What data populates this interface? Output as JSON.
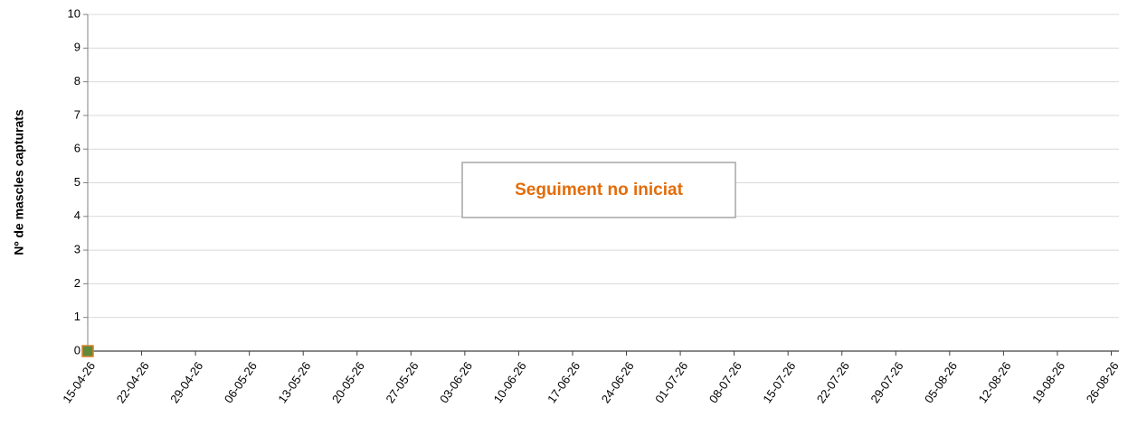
{
  "chart_data": {
    "type": "scatter",
    "y_label": "Nº de mascles capturats",
    "annotation": "Seguiment no iniciat",
    "x": [
      "15-04-26"
    ],
    "series": [
      {
        "color": "#5e8a3a",
        "edge_color": "#d9822b",
        "values": [
          0
        ]
      }
    ],
    "xlim": [
      "15-04-26",
      "27-08-26"
    ],
    "xticks": [
      "15-04-26",
      "22-04-26",
      "29-04-26",
      "06-05-26",
      "13-05-26",
      "20-05-26",
      "27-05-26",
      "03-06-26",
      "10-06-26",
      "17-06-26",
      "24-06-26",
      "01-07-26",
      "08-07-26",
      "15-07-26",
      "22-07-26",
      "29-07-26",
      "05-08-26",
      "12-08-26",
      "19-08-26",
      "26-08-26"
    ],
    "ylim": [
      0,
      10
    ],
    "yticks": [
      0,
      1,
      2,
      3,
      4,
      5,
      6,
      7,
      8,
      9,
      10
    ],
    "grid": true
  }
}
